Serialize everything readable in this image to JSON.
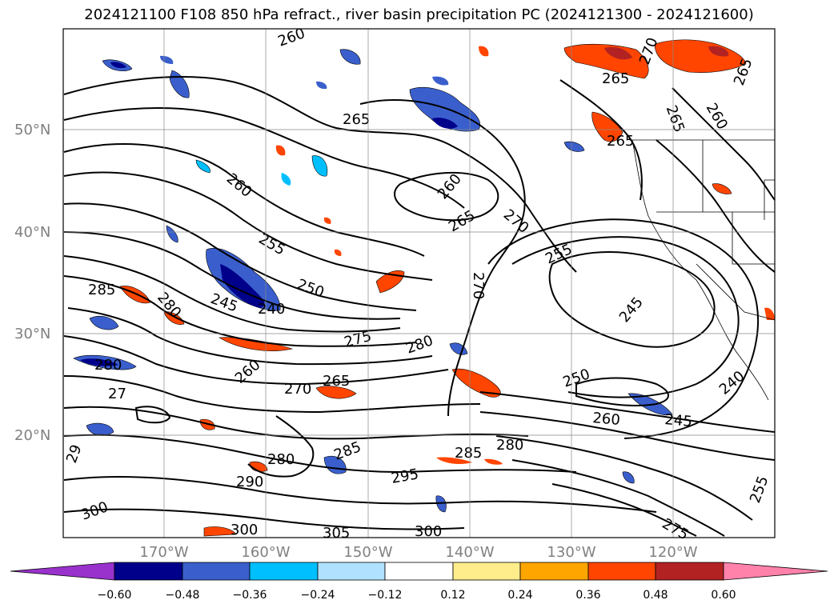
{
  "title": "2024121100 F108 850 hPa refract., river basin precipitation PC (2024121300 - 2024121600)",
  "lat_labels": [
    "50°N",
    "40°N",
    "30°N",
    "20°N"
  ],
  "lon_labels": [
    "170°W",
    "160°W",
    "150°W",
    "140°W",
    "130°W",
    "120°W"
  ],
  "contour_labels": [
    {
      "id": "c1",
      "text": "260"
    },
    {
      "id": "c2",
      "text": "265"
    },
    {
      "id": "c3",
      "text": "270"
    },
    {
      "id": "c4",
      "text": "265"
    },
    {
      "id": "c5",
      "text": "265"
    },
    {
      "id": "c6",
      "text": "260"
    },
    {
      "id": "c7",
      "text": "260"
    },
    {
      "id": "c8",
      "text": "265"
    },
    {
      "id": "c9",
      "text": "270"
    },
    {
      "id": "c10",
      "text": "255"
    },
    {
      "id": "c11",
      "text": "250"
    },
    {
      "id": "c12",
      "text": "245"
    },
    {
      "id": "c13",
      "text": "240"
    },
    {
      "id": "c14",
      "text": "285"
    },
    {
      "id": "c15",
      "text": "280"
    },
    {
      "id": "c16",
      "text": "275"
    },
    {
      "id": "c17",
      "text": "280"
    },
    {
      "id": "c18",
      "text": "270"
    },
    {
      "id": "c19",
      "text": "255"
    },
    {
      "id": "c20",
      "text": "245"
    },
    {
      "id": "c21",
      "text": "280"
    },
    {
      "id": "c22",
      "text": "260"
    },
    {
      "id": "c23",
      "text": "270"
    },
    {
      "id": "c24",
      "text": "265"
    },
    {
      "id": "c25",
      "text": "27"
    },
    {
      "id": "c26",
      "text": "250"
    },
    {
      "id": "c27",
      "text": "260"
    },
    {
      "id": "c28",
      "text": "245"
    },
    {
      "id": "c29",
      "text": "240"
    },
    {
      "id": "c30",
      "text": "285"
    },
    {
      "id": "c31",
      "text": "280"
    },
    {
      "id": "c32",
      "text": "290"
    },
    {
      "id": "c33",
      "text": "285"
    },
    {
      "id": "c34",
      "text": "280"
    },
    {
      "id": "c35",
      "text": "295"
    },
    {
      "id": "c36",
      "text": "29"
    },
    {
      "id": "c37",
      "text": "300"
    },
    {
      "id": "c38",
      "text": "300"
    },
    {
      "id": "c39",
      "text": "305"
    },
    {
      "id": "c40",
      "text": "300"
    },
    {
      "id": "c41",
      "text": "275"
    },
    {
      "id": "c42",
      "text": "255"
    },
    {
      "id": "c43",
      "text": "265"
    },
    {
      "id": "c44",
      "text": "260"
    },
    {
      "id": "c45",
      "text": "265"
    }
  ],
  "colorbar": {
    "ticks": [
      "−0.60",
      "−0.48",
      "−0.36",
      "−0.24",
      "−0.12",
      "0.12",
      "0.24",
      "0.36",
      "0.48",
      "0.60"
    ],
    "colors": [
      "#9932cc",
      "#00008b",
      "#3a5fcd",
      "#00bfff",
      "#b0e2ff",
      "#ffffff",
      "#ffec8b",
      "#ffa500",
      "#ff4500",
      "#b22222",
      "#ff82ab"
    ]
  }
}
